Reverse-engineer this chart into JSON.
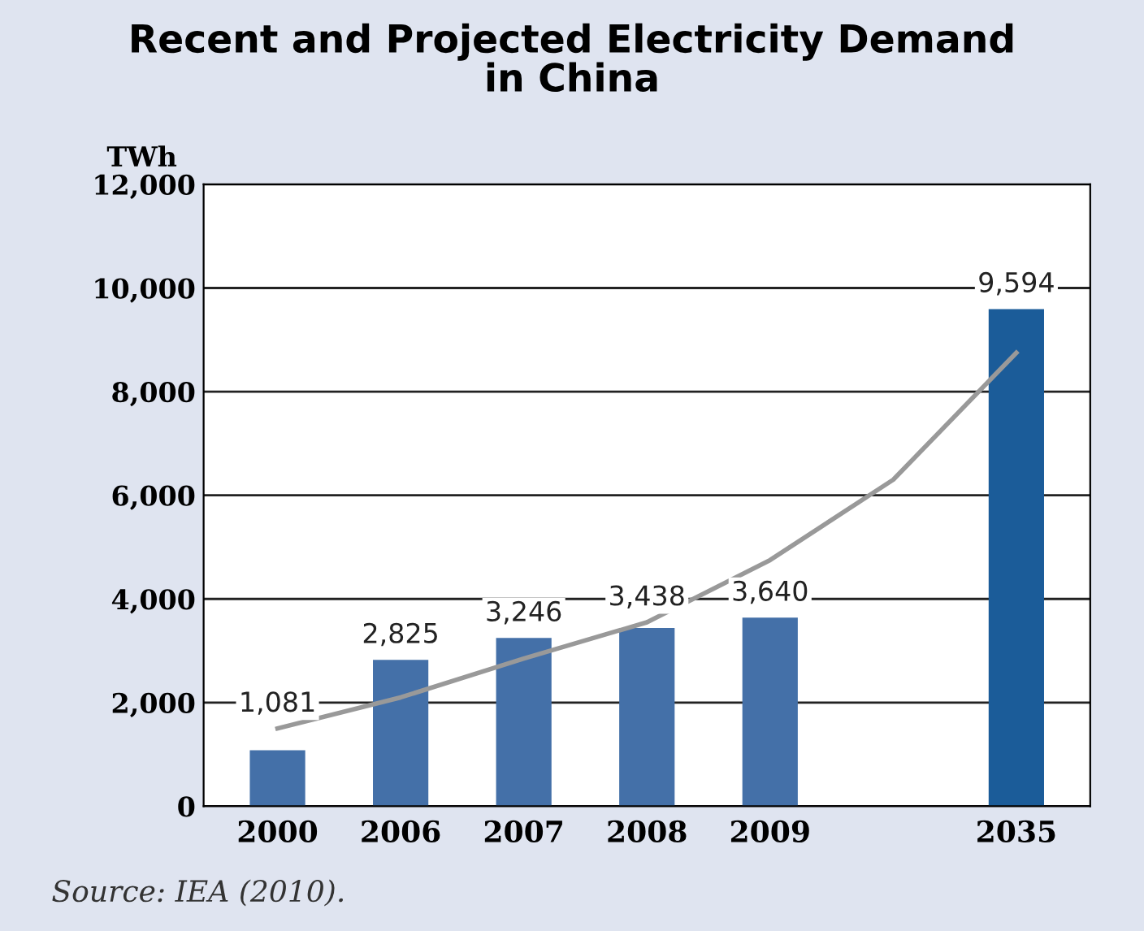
{
  "chart_data": {
    "type": "bar",
    "title": "Recent and Projected Electricity Demand\nin China",
    "ylabel": "TWh",
    "categories": [
      "2000",
      "2006",
      "2007",
      "2008",
      "2009",
      null,
      "2035"
    ],
    "series": [
      {
        "colors": [
          "#4470a8",
          "#4470a8",
          "#4470a8",
          "#4470a8",
          "#4470a8",
          null,
          "#1b5c99"
        ],
        "values": [
          1081,
          2825,
          3246,
          3438,
          3640,
          null,
          9594
        ],
        "value_labels": [
          "1,081",
          "2,825",
          "3,246",
          "3,438",
          "3,640",
          null,
          "9,594"
        ]
      },
      {
        "type": "line",
        "color": "#999999",
        "values": [
          1500,
          2100,
          2850,
          3550,
          4750,
          6300,
          8750
        ],
        "marker": "none",
        "line_style": "solid"
      }
    ],
    "ylim": [
      0,
      12000
    ],
    "yticks": [
      {
        "value": 0,
        "label": "0"
      },
      {
        "value": 2000,
        "label": "2,000"
      },
      {
        "value": 4000,
        "label": "4,000"
      },
      {
        "value": 6000,
        "label": "6,000"
      },
      {
        "value": 8000,
        "label": "8,000"
      },
      {
        "value": 10000,
        "label": "10,000"
      },
      {
        "value": 12000,
        "label": "12,000"
      }
    ],
    "grid": "y",
    "legend": false,
    "annotations": [
      "Source: IEA (2010)."
    ]
  }
}
